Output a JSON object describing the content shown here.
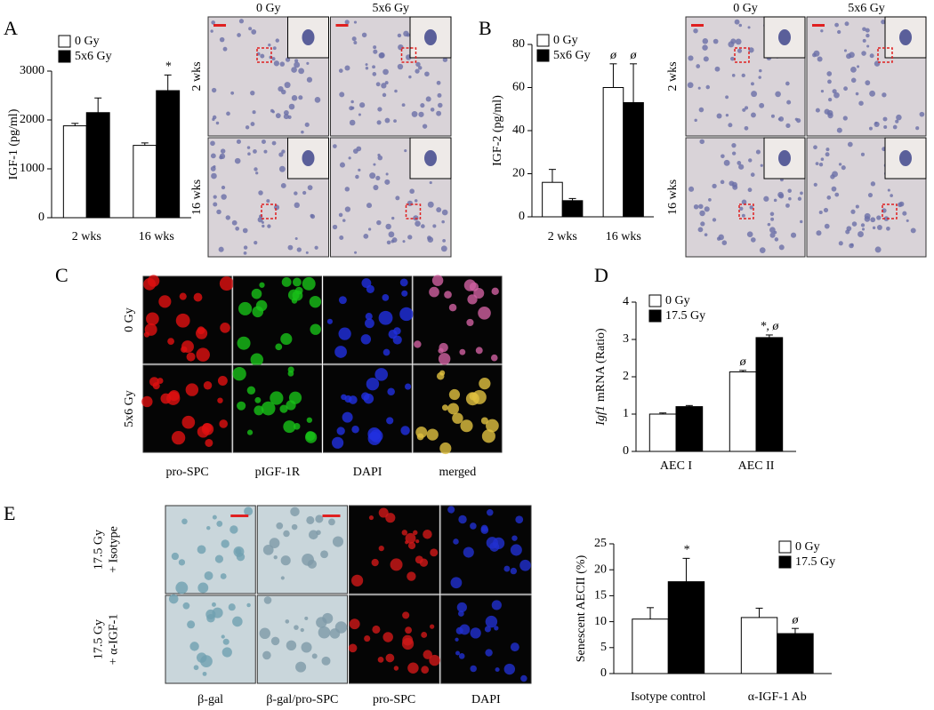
{
  "panel_letters": [
    "A",
    "B",
    "C",
    "D",
    "E"
  ],
  "image_panels": [
    {
      "columns": [
        "0 Gy",
        "5x6 Gy"
      ],
      "rows": [
        [
          "2 wks"
        ],
        [
          "16 wks"
        ]
      ]
    },
    {
      "columns": [
        "0 Gy",
        "5x6 Gy"
      ],
      "rows": [
        [
          "2 wks"
        ],
        [
          "16 wks"
        ]
      ]
    },
    {
      "columns": [
        "pro-SPC",
        "pIGF-1R",
        "DAPI",
        "merged"
      ],
      "rows": [
        [
          "0 Gy"
        ],
        [
          "5x6 Gy"
        ]
      ]
    },
    {
      "columns": [
        "β-gal",
        "β-gal/pro-SPC",
        "pro-SPC",
        "DAPI"
      ],
      "rows": [
        [
          "17.5 Gy",
          "+ Isotype"
        ],
        [
          "17.5 Gy",
          "+ α-IGF-1"
        ]
      ]
    }
  ],
  "chart_data": [
    {
      "type": "bar",
      "y_label": "IGF-1 (pg/ml)",
      "categories": [
        "2 wks",
        "16 wks"
      ],
      "series": [
        {
          "name": "0 Gy",
          "color": "#ffffff",
          "values": [
            1880,
            1480
          ],
          "errors": [
            50,
            50
          ],
          "annotations": [
            null,
            null
          ]
        },
        {
          "name": "5x6 Gy",
          "color": "#000000",
          "values": [
            2150,
            2600
          ],
          "errors": [
            300,
            320
          ],
          "annotations": [
            null,
            "*"
          ]
        }
      ],
      "ylim": [
        0,
        3000
      ],
      "yticks": [
        0,
        1000,
        2000,
        3000
      ]
    },
    {
      "type": "bar",
      "y_label": "IGF-2 (pg/ml)",
      "categories": [
        "2 wks",
        "16 wks"
      ],
      "series": [
        {
          "name": "0 Gy",
          "color": "#ffffff",
          "values": [
            16,
            60
          ],
          "errors": [
            6,
            11
          ],
          "annotations": [
            null,
            "ø"
          ]
        },
        {
          "name": "5x6 Gy",
          "color": "#000000",
          "values": [
            7.5,
            53
          ],
          "errors": [
            1,
            18
          ],
          "annotations": [
            null,
            "ø"
          ]
        }
      ],
      "ylim": [
        0,
        80
      ],
      "yticks": [
        0,
        20,
        40,
        60,
        80
      ]
    },
    {
      "type": "bar",
      "y_label_italic": "Igf1",
      "y_label": "mRNA (Ratio)",
      "categories": [
        "AEC I",
        "AEC II"
      ],
      "series": [
        {
          "name": "0 Gy",
          "color": "#ffffff",
          "values": [
            1.0,
            2.13
          ],
          "errors": [
            0.03,
            0.04
          ],
          "annotations": [
            null,
            "ø"
          ]
        },
        {
          "name": "17.5 Gy",
          "color": "#000000",
          "values": [
            1.2,
            3.05
          ],
          "errors": [
            0.03,
            0.07
          ],
          "annotations": [
            null,
            "*, ø"
          ]
        }
      ],
      "ylim": [
        0,
        4
      ],
      "yticks": [
        0,
        1,
        2,
        3,
        4
      ]
    },
    {
      "type": "bar",
      "y_label": "Senescent AECII (%)",
      "categories": [
        "Isotype control",
        "α-IGF-1 Ab"
      ],
      "series": [
        {
          "name": "0 Gy",
          "color": "#ffffff",
          "values": [
            10.5,
            10.8
          ],
          "errors": [
            2.2,
            1.8
          ],
          "annotations": [
            null,
            null
          ]
        },
        {
          "name": "17.5 Gy",
          "color": "#000000",
          "values": [
            17.7,
            7.7
          ],
          "errors": [
            4.5,
            1.0
          ],
          "annotations": [
            "*",
            "ø"
          ]
        }
      ],
      "ylim": [
        0,
        25
      ],
      "yticks": [
        0,
        5,
        10,
        15,
        20,
        25
      ]
    }
  ]
}
